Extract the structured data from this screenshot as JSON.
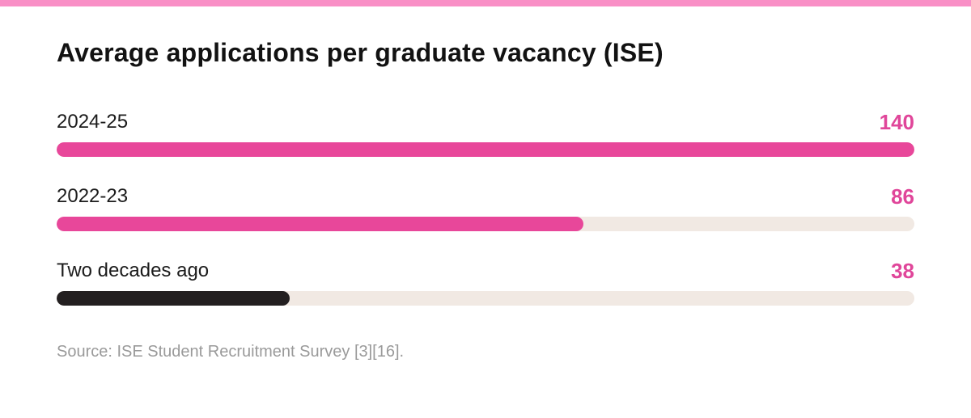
{
  "colors": {
    "top_stripe": "#f98fc6",
    "pink": "#e8479a",
    "dark": "#231f20",
    "track": "#f1e9e3",
    "value_text": "#e0469a"
  },
  "chart_data": {
    "type": "bar",
    "orientation": "horizontal",
    "title": "Average applications per graduate vacancy (ISE)",
    "categories": [
      "2024-25",
      "2022-23",
      "Two decades ago"
    ],
    "values": [
      140,
      86,
      38
    ],
    "value_labels": [
      "140",
      "86",
      "38"
    ],
    "bar_colors": [
      "#e8479a",
      "#e8479a",
      "#231f20"
    ],
    "xlim": [
      0,
      140
    ],
    "grid": false,
    "legend": "none"
  },
  "source": "Source: ISE Student Recruitment Survey [3][16]."
}
